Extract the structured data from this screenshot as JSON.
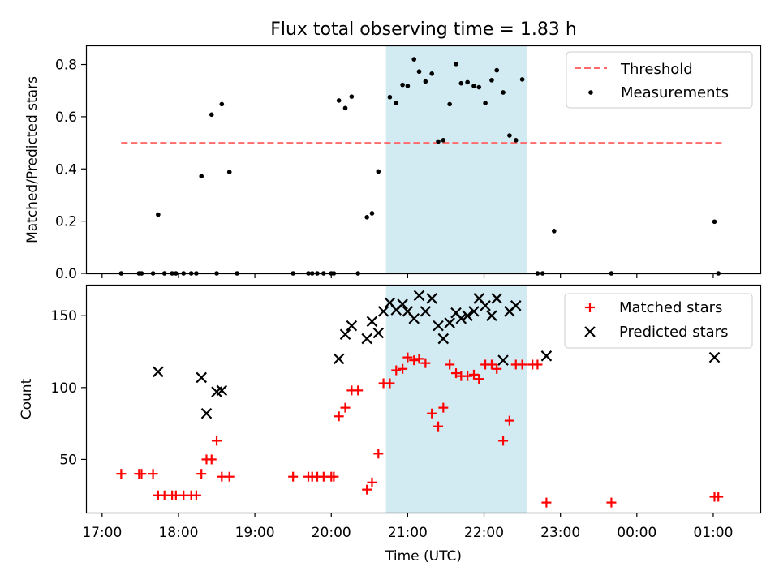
{
  "chart_data": [
    {
      "type": "scatter",
      "title": "Flux total observing time = 1.83 h",
      "xlabel": "",
      "ylabel": "Matched/Predicted stars",
      "ylim": [
        0,
        0.87
      ],
      "y_ticks": [
        "0.0",
        "0.2",
        "0.4",
        "0.6",
        "0.8"
      ],
      "legend_position": "top-right",
      "highlight_window": {
        "start": "20:43",
        "end": "22:34",
        "color": "#add8e6"
      },
      "threshold": {
        "name": "Threshold",
        "value": 0.5,
        "x_start": "17:15",
        "x_end": "01:08",
        "color": "#ff6b6b",
        "style": "dashed"
      },
      "series": [
        {
          "name": "Measurements",
          "color": "#000000",
          "marker": "dot",
          "points": [
            [
              "17:15",
              0
            ],
            [
              "17:29",
              0
            ],
            [
              "17:31",
              0
            ],
            [
              "17:40",
              0
            ],
            [
              "17:44",
              0.225
            ],
            [
              "17:49",
              0
            ],
            [
              "17:55",
              0
            ],
            [
              "17:58",
              0
            ],
            [
              "18:04",
              0
            ],
            [
              "18:10",
              0
            ],
            [
              "18:14",
              0
            ],
            [
              "18:18",
              0.372
            ],
            [
              "18:26",
              0.608
            ],
            [
              "18:30",
              0
            ],
            [
              "18:34",
              0.648
            ],
            [
              "18:40",
              0.388
            ],
            [
              "18:46",
              0
            ],
            [
              "19:30",
              0
            ],
            [
              "19:42",
              0
            ],
            [
              "19:45",
              0
            ],
            [
              "19:49",
              0
            ],
            [
              "19:54",
              0
            ],
            [
              "20:00",
              0
            ],
            [
              "20:02",
              0
            ],
            [
              "20:06",
              0.662
            ],
            [
              "20:11",
              0.633
            ],
            [
              "20:16",
              0.677
            ],
            [
              "20:21",
              0
            ],
            [
              "20:28",
              0.215
            ],
            [
              "20:32",
              0.23
            ],
            [
              "20:37",
              0.39
            ],
            [
              "20:46",
              0.675
            ],
            [
              "20:51",
              0.652
            ],
            [
              "20:56",
              0.722
            ],
            [
              "21:00",
              0.718
            ],
            [
              "21:05",
              0.82
            ],
            [
              "21:09",
              0.773
            ],
            [
              "21:14",
              0.735
            ],
            [
              "21:19",
              0.765
            ],
            [
              "21:24",
              0.505
            ],
            [
              "21:28",
              0.51
            ],
            [
              "21:33",
              0.648
            ],
            [
              "21:38",
              0.802
            ],
            [
              "21:42",
              0.728
            ],
            [
              "21:47",
              0.732
            ],
            [
              "21:52",
              0.718
            ],
            [
              "21:56",
              0.713
            ],
            [
              "22:01",
              0.652
            ],
            [
              "22:06",
              0.74
            ],
            [
              "22:10",
              0.778
            ],
            [
              "22:15",
              0.693
            ],
            [
              "22:20",
              0.528
            ],
            [
              "22:25",
              0.51
            ],
            [
              "22:30",
              0.743
            ],
            [
              "22:42",
              0
            ],
            [
              "22:46",
              0
            ],
            [
              "22:55",
              0.162
            ],
            [
              "23:40",
              0
            ],
            [
              "01:01",
              0.198
            ],
            [
              "01:04",
              0
            ]
          ]
        }
      ]
    },
    {
      "type": "scatter",
      "title": "",
      "xlabel": "Time (UTC)",
      "ylabel": "Count",
      "ylim": [
        13,
        171
      ],
      "y_ticks": [
        "50",
        "100",
        "150"
      ],
      "x_ticks": [
        "17:00",
        "18:00",
        "19:00",
        "20:00",
        "21:00",
        "22:00",
        "23:00",
        "00:00",
        "01:00"
      ],
      "legend_position": "top-right",
      "highlight_window": {
        "start": "20:43",
        "end": "22:34",
        "color": "#add8e6"
      },
      "series": [
        {
          "name": "Matched stars",
          "color": "#ff0000",
          "marker": "plus",
          "points": [
            [
              "17:15",
              40
            ],
            [
              "17:29",
              40
            ],
            [
              "17:31",
              40
            ],
            [
              "17:40",
              40
            ],
            [
              "17:44",
              25
            ],
            [
              "17:49",
              25
            ],
            [
              "17:55",
              25
            ],
            [
              "17:58",
              25
            ],
            [
              "18:04",
              25
            ],
            [
              "18:10",
              25
            ],
            [
              "18:14",
              25
            ],
            [
              "18:18",
              40
            ],
            [
              "18:22",
              50
            ],
            [
              "18:26",
              50
            ],
            [
              "18:30",
              63
            ],
            [
              "18:34",
              38
            ],
            [
              "18:40",
              38
            ],
            [
              "19:30",
              38
            ],
            [
              "19:42",
              38
            ],
            [
              "19:45",
              38
            ],
            [
              "19:49",
              38
            ],
            [
              "19:54",
              38
            ],
            [
              "20:00",
              38
            ],
            [
              "20:02",
              38
            ],
            [
              "20:06",
              80
            ],
            [
              "20:11",
              86
            ],
            [
              "20:16",
              98
            ],
            [
              "20:21",
              98
            ],
            [
              "20:28",
              29
            ],
            [
              "20:32",
              34
            ],
            [
              "20:37",
              54
            ],
            [
              "20:41",
              103
            ],
            [
              "20:46",
              103
            ],
            [
              "20:51",
              112
            ],
            [
              "20:56",
              113
            ],
            [
              "21:00",
              121
            ],
            [
              "21:05",
              119
            ],
            [
              "21:09",
              120
            ],
            [
              "21:14",
              117
            ],
            [
              "21:19",
              82
            ],
            [
              "21:24",
              73
            ],
            [
              "21:28",
              86
            ],
            [
              "21:33",
              116
            ],
            [
              "21:38",
              110
            ],
            [
              "21:42",
              108
            ],
            [
              "21:47",
              108
            ],
            [
              "21:52",
              109
            ],
            [
              "21:56",
              106
            ],
            [
              "22:01",
              116
            ],
            [
              "22:06",
              116
            ],
            [
              "22:10",
              113
            ],
            [
              "22:15",
              63
            ],
            [
              "22:20",
              77
            ],
            [
              "22:25",
              116
            ],
            [
              "22:30",
              116
            ],
            [
              "22:38",
              116
            ],
            [
              "22:42",
              116
            ],
            [
              "22:49",
              20
            ],
            [
              "23:40",
              20
            ],
            [
              "01:01",
              24
            ],
            [
              "01:04",
              24
            ]
          ]
        },
        {
          "name": "Predicted stars",
          "color": "#000000",
          "marker": "x",
          "points": [
            [
              "17:44",
              111
            ],
            [
              "18:18",
              107
            ],
            [
              "18:22",
              82
            ],
            [
              "18:30",
              97
            ],
            [
              "18:34",
              98
            ],
            [
              "20:06",
              120
            ],
            [
              "20:11",
              137
            ],
            [
              "20:16",
              143
            ],
            [
              "20:28",
              134
            ],
            [
              "20:32",
              146
            ],
            [
              "20:37",
              138
            ],
            [
              "20:41",
              153
            ],
            [
              "20:46",
              159
            ],
            [
              "20:51",
              154
            ],
            [
              "20:56",
              158
            ],
            [
              "21:00",
              153
            ],
            [
              "21:05",
              148
            ],
            [
              "21:09",
              164
            ],
            [
              "21:14",
              153
            ],
            [
              "21:19",
              162
            ],
            [
              "21:24",
              143
            ],
            [
              "21:28",
              134
            ],
            [
              "21:33",
              145
            ],
            [
              "21:38",
              152
            ],
            [
              "21:42",
              148
            ],
            [
              "21:47",
              150
            ],
            [
              "21:52",
              153
            ],
            [
              "21:56",
              162
            ],
            [
              "22:01",
              157
            ],
            [
              "22:06",
              150
            ],
            [
              "22:10",
              162
            ],
            [
              "22:15",
              119
            ],
            [
              "22:20",
              153
            ],
            [
              "22:25",
              157
            ],
            [
              "22:49",
              122
            ],
            [
              "01:01",
              121
            ]
          ]
        }
      ]
    }
  ]
}
